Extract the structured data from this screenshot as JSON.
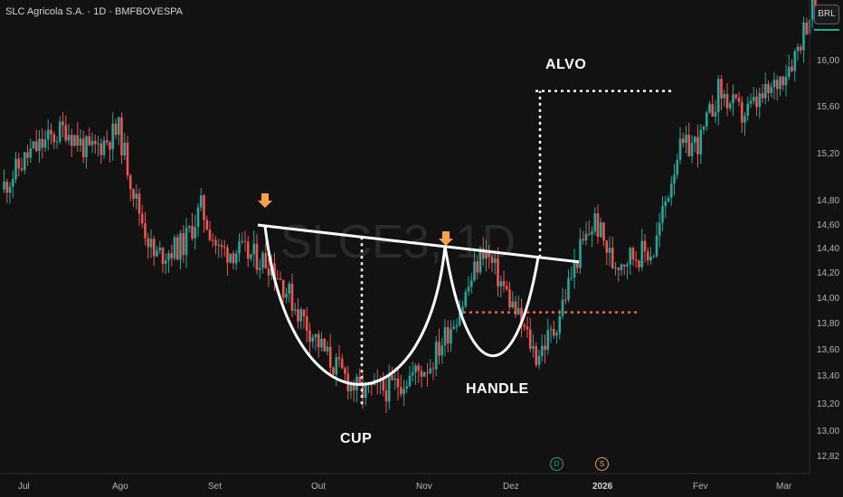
{
  "header": {
    "title": "SLC Agricola S.A. · 1D · BMFBOVESPA"
  },
  "currency_button": "BRL",
  "watermark": "SLCE3, 1D",
  "annotations": {
    "cup": "CUP",
    "handle": "HANDLE",
    "target": "ALVO"
  },
  "markers": {
    "dividend": "D",
    "split": "S"
  },
  "colors": {
    "background": "#121212",
    "up": "#26a69a",
    "down": "#ef5350",
    "arrow": "#f7a249",
    "target_line": "#ffffff",
    "stop_line": "#f25a5a"
  },
  "chart_data": {
    "type": "candlestick",
    "symbol": "SLCE3",
    "timeframe": "1D",
    "exchange": "BMFBOVESPA",
    "y_axis": {
      "ticks": [
        "16,00",
        "15,60",
        "15,20",
        "14,80",
        "14,60",
        "14,40",
        "14,20",
        "14,00",
        "13,80",
        "13,60",
        "13,40",
        "13,20",
        "13,00",
        "12,82"
      ],
      "range": [
        12.8,
        16.5
      ]
    },
    "x_axis": {
      "ticks": [
        "Jul",
        "Ago",
        "Set",
        "Out",
        "Nov",
        "Dez",
        "2026",
        "Fev",
        "Mar"
      ]
    },
    "path_keypoints": [
      [
        0,
        14.9
      ],
      [
        10,
        15.2
      ],
      [
        22,
        15.4
      ],
      [
        30,
        15.2
      ],
      [
        40,
        15.38
      ],
      [
        46,
        14.8
      ],
      [
        52,
        14.35
      ],
      [
        62,
        14.45
      ],
      [
        68,
        14.75
      ],
      [
        74,
        14.4
      ],
      [
        80,
        14.4
      ],
      [
        92,
        14.3
      ],
      [
        100,
        13.95
      ],
      [
        112,
        13.5
      ],
      [
        122,
        13.25
      ],
      [
        132,
        13.28
      ],
      [
        146,
        13.48
      ],
      [
        157,
        13.98
      ],
      [
        164,
        14.42
      ],
      [
        172,
        14.05
      ],
      [
        182,
        13.55
      ],
      [
        188,
        13.75
      ],
      [
        196,
        14.35
      ],
      [
        202,
        14.65
      ],
      [
        208,
        14.3
      ],
      [
        214,
        14.36
      ],
      [
        222,
        14.4
      ],
      [
        230,
        15.2
      ],
      [
        238,
        15.3
      ],
      [
        244,
        15.7
      ],
      [
        252,
        15.5
      ],
      [
        262,
        15.7
      ],
      [
        270,
        16.0
      ],
      [
        276,
        16.4
      ]
    ],
    "pattern": {
      "name": "cup and handle",
      "neckline": [
        14.61,
        14.31
      ],
      "cup_bottom": 13.09,
      "handle_bottom": 13.48,
      "target": 15.7,
      "stop": 13.9
    },
    "legend": "none",
    "grid": false
  }
}
